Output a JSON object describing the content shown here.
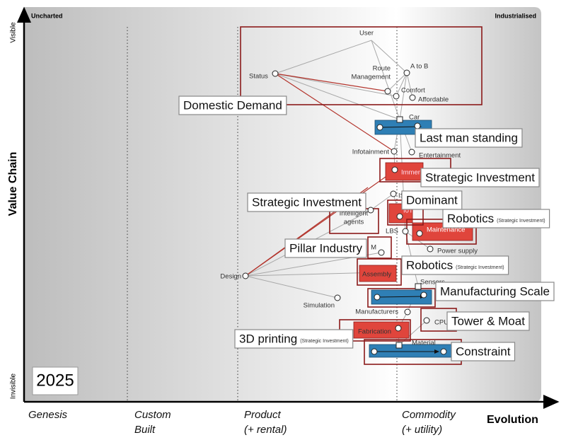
{
  "corners": {
    "top_left": "Uncharted",
    "top_right": "Industrialised"
  },
  "y_axis": {
    "title": "Value Chain",
    "top": "Visible",
    "bottom": "Invisible"
  },
  "x_axis": {
    "title": "Evolution",
    "stages": [
      [
        "Genesis"
      ],
      [
        "Custom",
        "Built"
      ],
      [
        "Product",
        "(+ rental)"
      ],
      [
        "Commodity",
        "(+ utility)"
      ]
    ]
  },
  "year": "2025",
  "nodes": [
    {
      "label": [
        "User"
      ]
    },
    {
      "label": [
        "Status"
      ]
    },
    {
      "label": [
        "A to B"
      ]
    },
    {
      "label": [
        "Route",
        "Management"
      ]
    },
    {
      "label": [
        "Comfort"
      ]
    },
    {
      "label": [
        "Affordable"
      ]
    },
    {
      "label": [
        "Car"
      ]
    },
    {
      "label": [
        "Infotainment"
      ]
    },
    {
      "label": [
        "Entertainment"
      ]
    },
    {
      "label": [
        "Immer"
      ]
    },
    {
      "label": [
        "IS"
      ]
    },
    {
      "label": [
        "Intelligent",
        "agents"
      ]
    },
    {
      "label": [
        "IoT"
      ]
    },
    {
      "label": [
        "LBS"
      ]
    },
    {
      "label": [
        "Maintenance"
      ]
    },
    {
      "label": [
        "M"
      ]
    },
    {
      "label": [
        "Power supply"
      ]
    },
    {
      "label": [
        "Design"
      ]
    },
    {
      "label": [
        "Assembly"
      ]
    },
    {
      "label": [
        "Sensors"
      ]
    },
    {
      "label": [
        "Simulation"
      ]
    },
    {
      "label": [
        "Manufacturers"
      ]
    },
    {
      "label": [
        "CPU"
      ]
    },
    {
      "label": [
        "Fabrication"
      ]
    },
    {
      "label": [
        "Material"
      ]
    }
  ],
  "callouts": [
    {
      "text": "Domestic Demand"
    },
    {
      "text": "Last man standing"
    },
    {
      "text": "Strategic Investment"
    },
    {
      "text": "Strategic Investment"
    },
    {
      "text": "Dominant"
    },
    {
      "text": "Robotics",
      "note": "(Strategic Investment)"
    },
    {
      "text": "Pillar Industry"
    },
    {
      "text": "Robotics",
      "note": "(Strategic Investment)"
    },
    {
      "text": "Manufacturing Scale"
    },
    {
      "text": "Tower & Moat"
    },
    {
      "text": "3D printing",
      "note": "(Strategic Investment)"
    },
    {
      "text": "Constraint"
    }
  ]
}
